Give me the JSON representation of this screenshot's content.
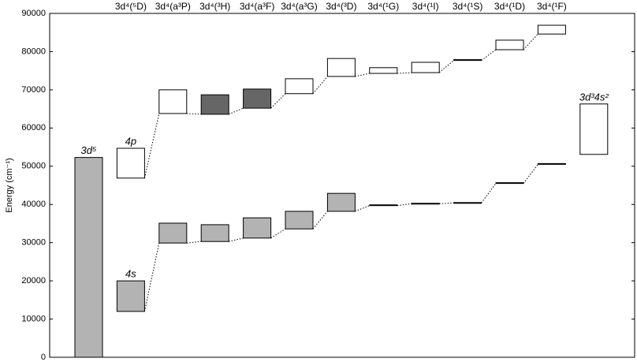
{
  "chart_data": {
    "type": "energy-levels",
    "ylabel": "Energy (cm⁻¹)",
    "ylim": [
      0,
      90000
    ],
    "yticks": [
      0,
      10000,
      20000,
      30000,
      40000,
      50000,
      60000,
      70000,
      80000,
      90000
    ],
    "categories": [
      null,
      "3d⁴(⁵D)",
      "3d⁴(a³P)",
      "3d⁴(³H)",
      "3d⁴(a³F)",
      "3d⁴(a³G)",
      "3d⁴(³D)",
      "3d⁴(¹G)",
      "3d⁴(¹I)",
      "3d⁴(¹S)",
      "3d⁴(¹D)",
      "3d⁴(¹F)",
      null
    ],
    "series": [
      {
        "name": "3d⁵",
        "color": "#b3b3b3",
        "low": [
          0,
          null,
          null,
          null,
          null,
          null,
          null,
          null,
          null,
          null,
          null,
          null,
          null
        ],
        "high": [
          52300,
          null,
          null,
          null,
          null,
          null,
          null,
          null,
          null,
          null,
          null,
          null,
          null
        ]
      },
      {
        "name": "4p",
        "color": "#ffffff",
        "low": [
          null,
          46900,
          63800,
          63600,
          65200,
          69000,
          73500,
          74300,
          74500,
          77700,
          80500,
          84600,
          null
        ],
        "high": [
          null,
          54700,
          70000,
          68700,
          70200,
          72900,
          78200,
          75800,
          77200,
          77900,
          83000,
          86900,
          null
        ],
        "colors": [
          null,
          "#ffffff",
          "#ffffff",
          "#666666",
          "#666666",
          "#ffffff",
          "#ffffff",
          "#ffffff",
          "#ffffff",
          "#ffffff",
          "#ffffff",
          "#ffffff",
          null
        ]
      },
      {
        "name": "4s",
        "color": "#b3b3b3",
        "low": [
          null,
          12000,
          29900,
          30300,
          31200,
          33600,
          38200,
          39700,
          40200,
          40400,
          45500,
          50500,
          null
        ],
        "high": [
          null,
          20000,
          35100,
          34700,
          36500,
          38200,
          42900,
          39900,
          40300,
          40500,
          45700,
          50700,
          null
        ]
      },
      {
        "name": "3d³4s²",
        "color": "#ffffff",
        "low": [
          null,
          null,
          null,
          null,
          null,
          null,
          null,
          null,
          null,
          null,
          null,
          null,
          53100
        ],
        "high": [
          null,
          null,
          null,
          null,
          null,
          null,
          null,
          null,
          null,
          null,
          null,
          null,
          66300
        ]
      }
    ]
  }
}
